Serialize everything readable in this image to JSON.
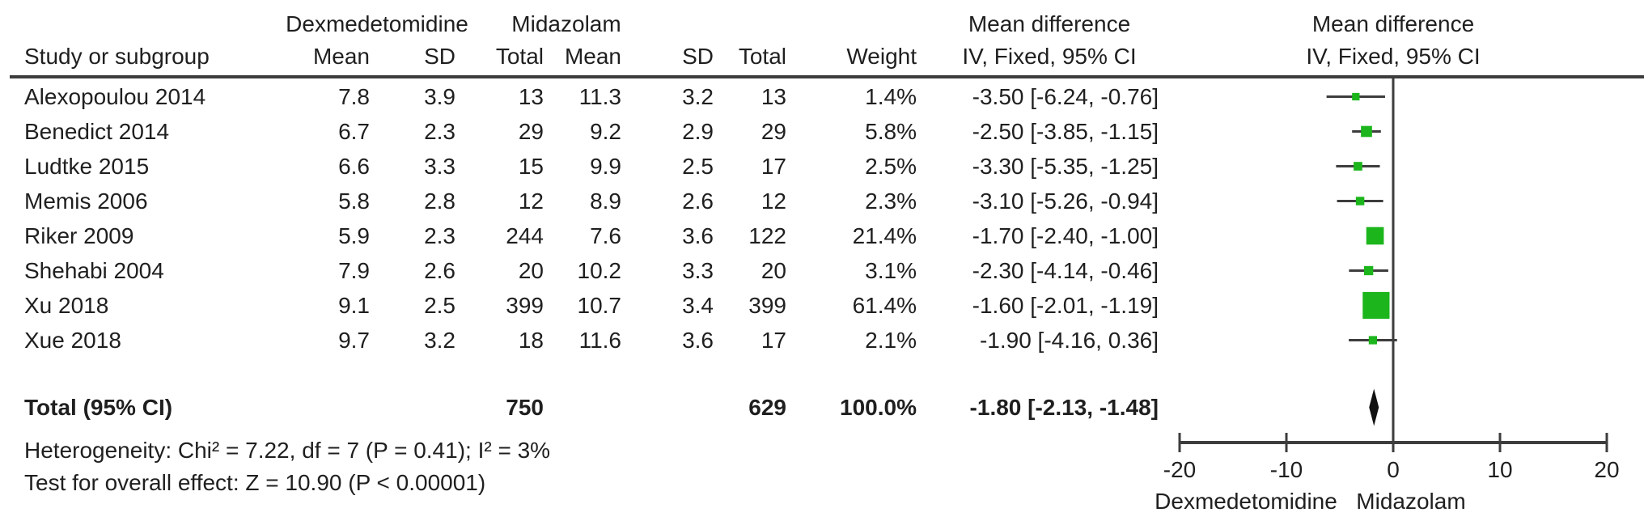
{
  "header": {
    "study_col": "Study or subgroup",
    "group1": "Dexmedetomidine",
    "group2": "Midazolam",
    "mean": "Mean",
    "sd": "SD",
    "total": "Total",
    "weight": "Weight",
    "effect_title": "Mean difference",
    "effect_method": "IV, Fixed, 95% CI"
  },
  "rows": [
    {
      "study": "Alexopoulou 2014",
      "mean1": "7.8",
      "sd1": "3.9",
      "total1": "13",
      "mean2": "11.3",
      "sd2": "3.2",
      "total2": "13",
      "weight": "1.4%",
      "ci_text": "-3.50 [-6.24, -0.76]",
      "md": -3.5,
      "lo": -6.24,
      "hi": -0.76,
      "weight_value": 1.4
    },
    {
      "study": "Benedict 2014",
      "mean1": "6.7",
      "sd1": "2.3",
      "total1": "29",
      "mean2": "9.2",
      "sd2": "2.9",
      "total2": "29",
      "weight": "5.8%",
      "ci_text": "-2.50 [-3.85, -1.15]",
      "md": -2.5,
      "lo": -3.85,
      "hi": -1.15,
      "weight_value": 5.8
    },
    {
      "study": "Ludtke 2015",
      "mean1": "6.6",
      "sd1": "3.3",
      "total1": "15",
      "mean2": "9.9",
      "sd2": "2.5",
      "total2": "17",
      "weight": "2.5%",
      "ci_text": "-3.30 [-5.35, -1.25]",
      "md": -3.3,
      "lo": -5.35,
      "hi": -1.25,
      "weight_value": 2.5
    },
    {
      "study": "Memis 2006",
      "mean1": "5.8",
      "sd1": "2.8",
      "total1": "12",
      "mean2": "8.9",
      "sd2": "2.6",
      "total2": "12",
      "weight": "2.3%",
      "ci_text": "-3.10 [-5.26, -0.94]",
      "md": -3.1,
      "lo": -5.26,
      "hi": -0.94,
      "weight_value": 2.3
    },
    {
      "study": "Riker 2009",
      "mean1": "5.9",
      "sd1": "2.3",
      "total1": "244",
      "mean2": "7.6",
      "sd2": "3.6",
      "total2": "122",
      "weight": "21.4%",
      "ci_text": "-1.70 [-2.40, -1.00]",
      "md": -1.7,
      "lo": -2.4,
      "hi": -1.0,
      "weight_value": 21.4
    },
    {
      "study": "Shehabi 2004",
      "mean1": "7.9",
      "sd1": "2.6",
      "total1": "20",
      "mean2": "10.2",
      "sd2": "3.3",
      "total2": "20",
      "weight": "3.1%",
      "ci_text": "-2.30 [-4.14, -0.46]",
      "md": -2.3,
      "lo": -4.14,
      "hi": -0.46,
      "weight_value": 3.1
    },
    {
      "study": "Xu 2018",
      "mean1": "9.1",
      "sd1": "2.5",
      "total1": "399",
      "mean2": "10.7",
      "sd2": "3.4",
      "total2": "399",
      "weight": "61.4%",
      "ci_text": "-1.60 [-2.01, -1.19]",
      "md": -1.6,
      "lo": -2.01,
      "hi": -1.19,
      "weight_value": 61.4
    },
    {
      "study": "Xue 2018",
      "mean1": "9.7",
      "sd1": "3.2",
      "total1": "18",
      "mean2": "11.6",
      "sd2": "3.6",
      "total2": "17",
      "weight": "2.1%",
      "ci_text": "-1.90 [-4.16, 0.36]",
      "md": -1.9,
      "lo": -4.16,
      "hi": 0.36,
      "weight_value": 2.1
    }
  ],
  "total_row": {
    "label": "Total (95% CI)",
    "total1": "750",
    "total2": "629",
    "weight": "100.0%",
    "ci_text": "-1.80 [-2.13, -1.48]",
    "md": -1.8,
    "lo": -2.13,
    "hi": -1.48
  },
  "footnotes": {
    "heterogeneity": "Heterogeneity: Chi² = 7.22, df = 7 (P = 0.41); I² = 3%",
    "overall_effect": "Test for overall effect: Z = 10.90 (P < 0.00001)"
  },
  "axis": {
    "min": -20,
    "max": 20,
    "tick_values": [
      -20,
      -10,
      0,
      10,
      20
    ],
    "tick_labels": [
      "-20",
      "-10",
      "0",
      "10",
      "20"
    ],
    "favours_left": "Dexmedetomidine",
    "favours_right": "Midazolam"
  },
  "colors": {
    "marker_green": "#1cb51c",
    "diamond_black": "#111111",
    "line_gray": "#3d3d3d",
    "text_black": "#1f1f1f"
  },
  "chart_data": {
    "type": "scatter",
    "subtype": "forest-plot",
    "title": "Mean difference, IV, Fixed, 95% CI",
    "group_labels": [
      "Dexmedetomidine",
      "Midazolam"
    ],
    "studies": [
      "Alexopoulou 2014",
      "Benedict 2014",
      "Ludtke 2015",
      "Memis 2006",
      "Riker 2009",
      "Shehabi 2004",
      "Xu 2018",
      "Xue 2018"
    ],
    "series": [
      {
        "name": "Dexmedetomidine",
        "mean": [
          7.8,
          6.7,
          6.6,
          5.8,
          5.9,
          7.9,
          9.1,
          9.7
        ],
        "sd": [
          3.9,
          2.3,
          3.3,
          2.8,
          2.3,
          2.6,
          2.5,
          3.2
        ],
        "total": [
          13,
          29,
          15,
          12,
          244,
          20,
          399,
          18
        ]
      },
      {
        "name": "Midazolam",
        "mean": [
          11.3,
          9.2,
          9.9,
          8.9,
          7.6,
          10.2,
          10.7,
          11.6
        ],
        "sd": [
          3.2,
          2.9,
          2.5,
          2.6,
          3.6,
          3.3,
          3.4,
          3.6
        ],
        "total": [
          13,
          29,
          17,
          12,
          122,
          20,
          399,
          17
        ]
      }
    ],
    "effects": [
      {
        "study": "Alexopoulou 2014",
        "md": -3.5,
        "ci": [
          -6.24,
          -0.76
        ],
        "weight_pct": 1.4
      },
      {
        "study": "Benedict 2014",
        "md": -2.5,
        "ci": [
          -3.85,
          -1.15
        ],
        "weight_pct": 5.8
      },
      {
        "study": "Ludtke 2015",
        "md": -3.3,
        "ci": [
          -5.35,
          -1.25
        ],
        "weight_pct": 2.5
      },
      {
        "study": "Memis 2006",
        "md": -3.1,
        "ci": [
          -5.26,
          -0.94
        ],
        "weight_pct": 2.3
      },
      {
        "study": "Riker 2009",
        "md": -1.7,
        "ci": [
          -2.4,
          -1.0
        ],
        "weight_pct": 21.4
      },
      {
        "study": "Shehabi 2004",
        "md": -2.3,
        "ci": [
          -4.14,
          -0.46
        ],
        "weight_pct": 3.1
      },
      {
        "study": "Xu 2018",
        "md": -1.6,
        "ci": [
          -2.01,
          -1.19
        ],
        "weight_pct": 61.4
      },
      {
        "study": "Xue 2018",
        "md": -1.9,
        "ci": [
          -4.16,
          0.36
        ],
        "weight_pct": 2.1
      }
    ],
    "total": {
      "md": -1.8,
      "ci": [
        -2.13,
        -1.48
      ],
      "weight_pct": 100.0,
      "total_dexmedetomidine": 750,
      "total_midazolam": 629
    },
    "heterogeneity": "Chi² = 7.22, df = 7 (P = 0.41); I² = 3%",
    "overall_effect": "Z = 10.90 (P < 0.00001)",
    "xlim": [
      -20,
      20
    ],
    "xticks": [
      -20,
      -10,
      0,
      10,
      20
    ],
    "favours_left": "Dexmedetomidine",
    "favours_right": "Midazolam",
    "grid": false,
    "legend": false
  }
}
